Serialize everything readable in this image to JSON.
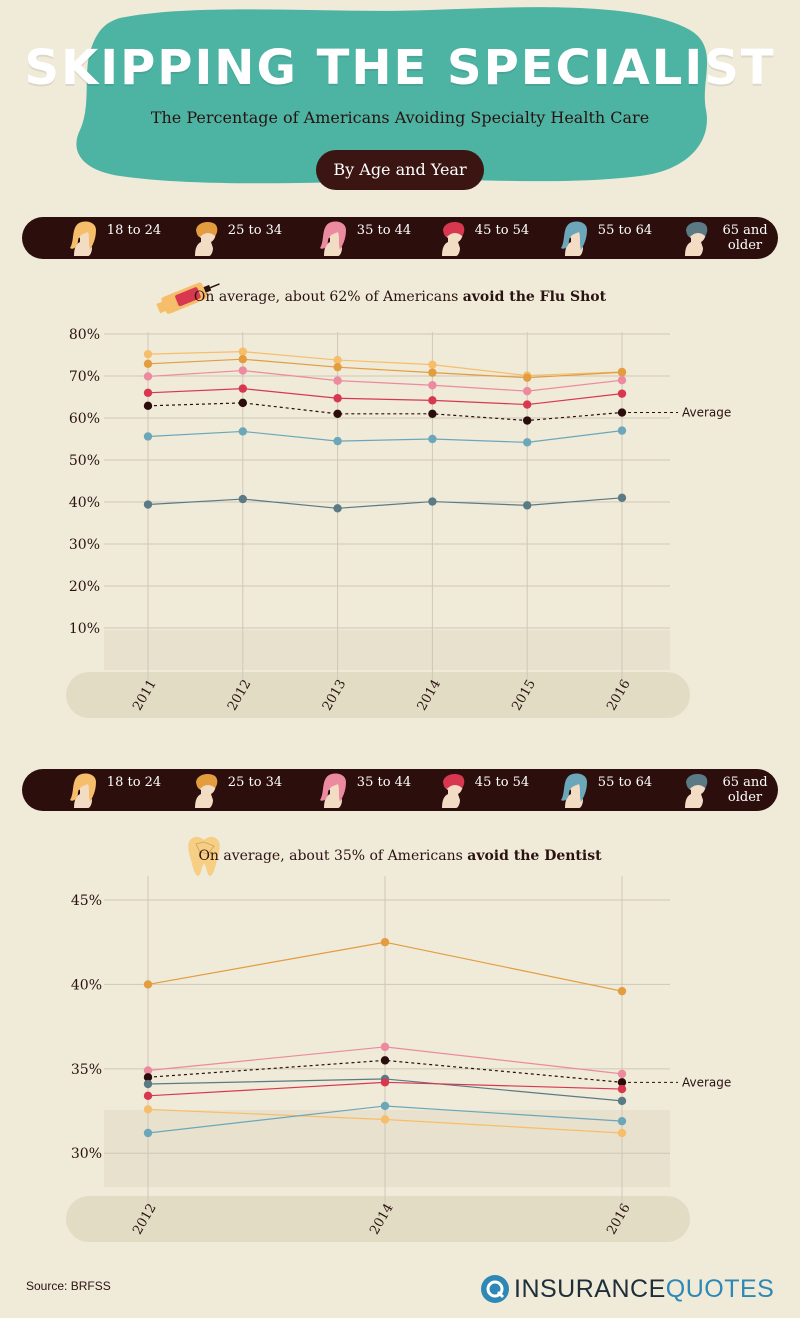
{
  "header": {
    "title": "SKIPPING THE SPECIALIST",
    "subtitle": "The Percentage of Americans Avoiding Specialty Health Care",
    "pill": "By Age and Year"
  },
  "legend": [
    {
      "label": "18 to 24",
      "color": "#f6be6b",
      "icon": "woman-head-icon"
    },
    {
      "label": "25 to 34",
      "color": "#e39c3e",
      "icon": "man-head-icon"
    },
    {
      "label": "35 to 44",
      "color": "#ec8aa0",
      "icon": "woman-head-icon"
    },
    {
      "label": "45 to 54",
      "color": "#d7384f",
      "icon": "man-head-icon"
    },
    {
      "label": "55 to 64",
      "color": "#6ca7b9",
      "icon": "woman-head-icon"
    },
    {
      "label": "65 and older",
      "color": "#5a7a85",
      "icon": "man-head-icon"
    }
  ],
  "average_color": "#2a0d0b",
  "chart1": {
    "heading_pre": "On average, about 62% of Americans ",
    "heading_bold": "avoid the Flu Shot",
    "icon": "syringe-icon"
  },
  "chart2": {
    "heading_pre": "On average, about 35% of Americans ",
    "heading_bold": "avoid the Dentist",
    "icon": "tooth-icon"
  },
  "chart_data": [
    {
      "type": "line",
      "x": [
        "2011",
        "2012",
        "2013",
        "2014",
        "2015",
        "2016"
      ],
      "ylim": [
        0,
        80
      ],
      "yticks": [
        "10%",
        "20%",
        "30%",
        "40%",
        "50%",
        "60%",
        "70%",
        "80%"
      ],
      "average_label": "Average",
      "series": [
        {
          "name": "18 to 24",
          "color": "#f6be6b",
          "values": [
            75.2,
            75.8,
            73.8,
            72.7,
            70.1,
            71.0
          ]
        },
        {
          "name": "25 to 34",
          "color": "#e39c3e",
          "values": [
            72.9,
            74.0,
            72.1,
            70.8,
            69.6,
            70.9
          ]
        },
        {
          "name": "35 to 44",
          "color": "#ec8aa0",
          "values": [
            69.9,
            71.3,
            68.9,
            67.8,
            66.4,
            69.0
          ]
        },
        {
          "name": "45 to 54",
          "color": "#d7384f",
          "values": [
            66.0,
            67.0,
            64.7,
            64.2,
            63.2,
            65.8
          ]
        },
        {
          "name": "Average",
          "color": "#2a0d0b",
          "dashed": true,
          "values": [
            62.9,
            63.6,
            61.0,
            61.0,
            59.4,
            61.3
          ]
        },
        {
          "name": "55 to 64",
          "color": "#6ca7b9",
          "values": [
            55.6,
            56.8,
            54.5,
            55.0,
            54.2,
            57.0
          ]
        },
        {
          "name": "65 and older",
          "color": "#5a7a85",
          "values": [
            39.4,
            40.7,
            38.5,
            40.1,
            39.2,
            41.0
          ]
        }
      ]
    },
    {
      "type": "line",
      "x": [
        "2012",
        "2014",
        "2016"
      ],
      "ylim": [
        28,
        45
      ],
      "yticks": [
        "30%",
        "35%",
        "40%",
        "45%"
      ],
      "average_label": "Average",
      "series": [
        {
          "name": "25 to 34",
          "color": "#e39c3e",
          "values": [
            40.0,
            42.5,
            39.6
          ]
        },
        {
          "name": "35 to 44",
          "color": "#ec8aa0",
          "values": [
            34.9,
            36.3,
            34.7
          ]
        },
        {
          "name": "Average",
          "color": "#2a0d0b",
          "dashed": true,
          "values": [
            34.5,
            35.5,
            34.2
          ]
        },
        {
          "name": "65 and older",
          "color": "#5a7a85",
          "values": [
            34.1,
            34.4,
            33.1
          ]
        },
        {
          "name": "45 to 54",
          "color": "#d7384f",
          "values": [
            33.4,
            34.2,
            33.8
          ]
        },
        {
          "name": "18 to 24",
          "color": "#f6be6b",
          "values": [
            32.6,
            32.0,
            31.2
          ]
        },
        {
          "name": "55 to 64",
          "color": "#6ca7b9",
          "values": [
            31.2,
            32.8,
            31.9
          ]
        }
      ]
    }
  ],
  "footer": {
    "source": "Source: BRFSS",
    "logo_a": "INSURANCE",
    "logo_b": "QUOTES"
  }
}
